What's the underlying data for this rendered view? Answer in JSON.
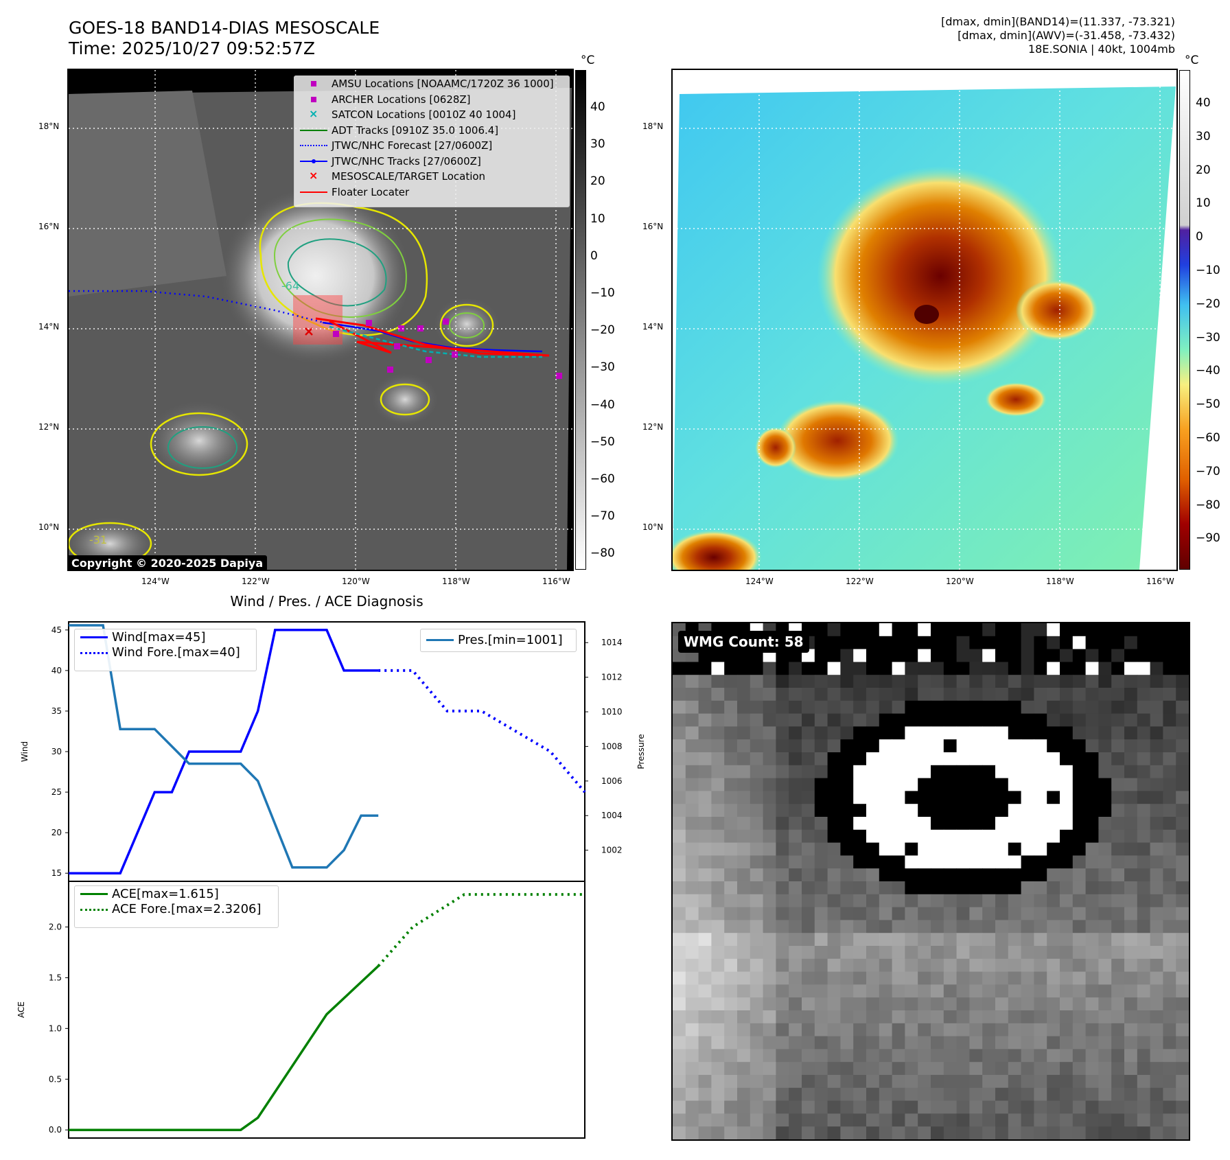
{
  "header": {
    "title_line1": "GOES-18 BAND14-DIAS MESOSCALE",
    "title_line2": "Time: 2025/10/27 09:52:57Z",
    "info_line1": "[dmax, dmin](BAND14)=(11.337, -73.321)",
    "info_line2": "[dmax, dmin](AWV)=(-31.458, -73.432)",
    "info_line3": "18E.SONIA | 40kt, 1004mb"
  },
  "maps": {
    "lon_labels": [
      "124°W",
      "122°W",
      "120°W",
      "118°W",
      "116°W"
    ],
    "lat_labels": [
      "18°N",
      "16°N",
      "14°N",
      "12°N",
      "10°N"
    ],
    "copyright": "Copyright © 2020-2025 Dapiya",
    "contour_labels": [
      "-64",
      "-31"
    ],
    "colorbar_unit": "°C",
    "left_colorbar_ticks": [
      "40",
      "30",
      "20",
      "10",
      "0",
      "−10",
      "−20",
      "−30",
      "−40",
      "−50",
      "−60",
      "−70",
      "−80"
    ],
    "right_colorbar_ticks": [
      "40",
      "30",
      "20",
      "10",
      "0",
      "−10",
      "−20",
      "−30",
      "−40",
      "−50",
      "−60",
      "−70",
      "−80",
      "−90"
    ],
    "legend": [
      {
        "label": "AMSU Locations [NOAAMC/1720Z 36 1000]",
        "color": "#c000c0",
        "marker": "square"
      },
      {
        "label": "ARCHER Locations [0628Z]",
        "color": "#c000c0",
        "marker": "square"
      },
      {
        "label": "SATCON Locations [0010Z 40 1004]",
        "color": "#00b0b0",
        "marker": "x"
      },
      {
        "label": "ADT Tracks [0910Z 35.0 1006.4]",
        "color": "#008000",
        "marker": "line"
      },
      {
        "label": "JTWC/NHC Forecast [27/0600Z]",
        "color": "#0000ff",
        "marker": "dotted"
      },
      {
        "label": "JTWC/NHC Tracks [27/0600Z]",
        "color": "#0000ff",
        "marker": "line-dot"
      },
      {
        "label": "MESOSCALE/TARGET Location",
        "color": "#ff0000",
        "marker": "x"
      },
      {
        "label": "Floater Locater",
        "color": "#ff0000",
        "marker": "line"
      }
    ]
  },
  "diagnosis": {
    "title": "Wind / Pres. / ACE Diagnosis",
    "wind_axis_label": "Wind",
    "pressure_axis_label": "Pressure",
    "ace_axis_label": "ACE",
    "wmg_count": "WMG Count: 58",
    "legend_wind": "Wind[max=45]",
    "legend_wind_fore": "Wind Fore.[max=40]",
    "legend_pres": "Pres.[min=1001]",
    "legend_ace": "ACE[max=1.615]",
    "legend_ace_fore": "ACE Fore.[max=2.3206]"
  },
  "chart_data": [
    {
      "type": "line",
      "title": "Wind / Pres. / ACE Diagnosis",
      "ylabel": "Wind",
      "ylim": [
        14,
        46
      ],
      "yticks": [
        15,
        20,
        25,
        30,
        35,
        40,
        45
      ],
      "secondary_ylabel": "Pressure",
      "secondary_ylim": [
        1000.2,
        1015.2
      ],
      "secondary_yticks": [
        1002,
        1004,
        1006,
        1008,
        1010,
        1012,
        1014
      ],
      "xlim": [
        0,
        30
      ],
      "series": [
        {
          "name": "Wind[max=45]",
          "color": "#0000ff",
          "style": "solid",
          "axis": "left",
          "x": [
            0,
            3,
            5,
            6,
            7,
            10,
            11,
            12,
            15,
            16,
            18
          ],
          "values": [
            15,
            15,
            25,
            25,
            30,
            30,
            35,
            45,
            45,
            40,
            40
          ]
        },
        {
          "name": "Wind Fore.[max=40]",
          "color": "#0000ff",
          "style": "dotted",
          "axis": "left",
          "x": [
            18,
            20,
            22,
            24,
            26,
            28,
            30
          ],
          "values": [
            40,
            40,
            35,
            35,
            32.5,
            30,
            25
          ]
        },
        {
          "name": "Pres.[min=1001]",
          "color": "#1f77b4",
          "style": "solid",
          "axis": "right",
          "x": [
            0,
            2,
            3,
            5,
            7,
            10,
            11,
            13,
            15,
            16,
            17,
            18
          ],
          "values": [
            1015,
            1015,
            1009,
            1009,
            1007,
            1007,
            1006,
            1001,
            1001,
            1002,
            1004,
            1004
          ]
        }
      ]
    },
    {
      "type": "line",
      "ylabel": "ACE",
      "ylim": [
        -0.08,
        2.45
      ],
      "yticks": [
        0.0,
        0.5,
        1.0,
        1.5,
        2.0
      ],
      "xlim": [
        0,
        30
      ],
      "series": [
        {
          "name": "ACE[max=1.615]",
          "color": "#008000",
          "style": "solid",
          "x": [
            0,
            10,
            11,
            15,
            18
          ],
          "values": [
            0,
            0,
            0.12,
            1.14,
            1.615
          ]
        },
        {
          "name": "ACE Fore.[max=2.3206]",
          "color": "#008000",
          "style": "dotted",
          "x": [
            18,
            20,
            23,
            30
          ],
          "values": [
            1.615,
            2.0,
            2.3206,
            2.3206
          ]
        }
      ]
    }
  ]
}
